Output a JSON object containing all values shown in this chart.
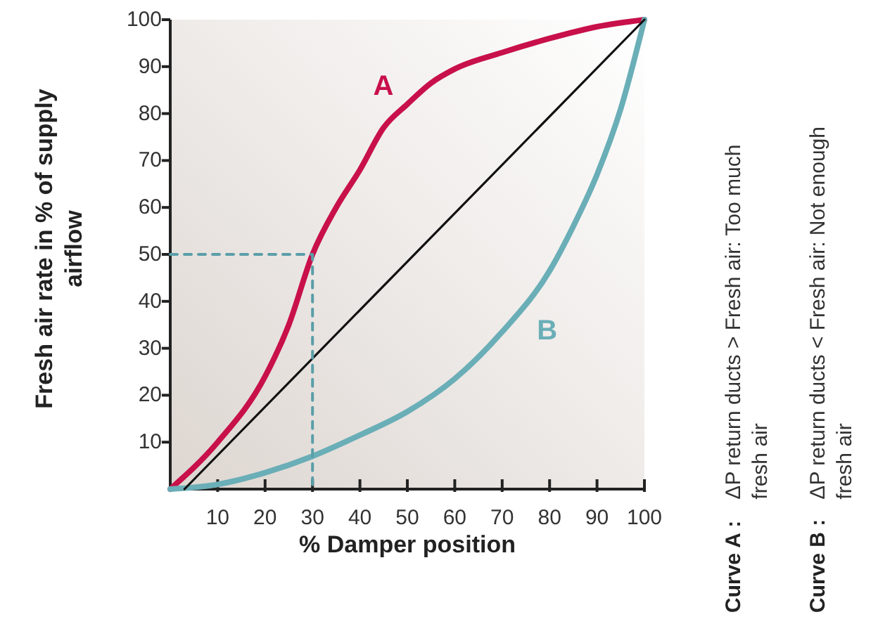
{
  "chart_data": {
    "type": "line",
    "xlabel": "% Damper position",
    "ylabel": "Fresh air rate in % of supply airflow",
    "xlim": [
      0,
      100
    ],
    "ylim": [
      0,
      100
    ],
    "xticks": [
      10,
      20,
      30,
      40,
      50,
      60,
      70,
      80,
      90,
      100
    ],
    "yticks": [
      10,
      20,
      30,
      40,
      50,
      60,
      70,
      80,
      90,
      100
    ],
    "grid": false,
    "marker": "none",
    "series": [
      {
        "name": "A",
        "color": "#c8104a",
        "x": [
          0,
          10,
          20,
          25,
          30,
          35,
          40,
          45,
          50,
          55,
          60,
          70,
          80,
          90,
          100
        ],
        "values": [
          0,
          10,
          24,
          35,
          50,
          60,
          68,
          77,
          82,
          86.5,
          89.5,
          93,
          96,
          98.5,
          100
        ]
      },
      {
        "name": "B",
        "color": "#6aaeb7",
        "x": [
          0,
          10,
          20,
          30,
          40,
          50,
          60,
          70,
          80,
          85,
          90,
          95,
          100
        ],
        "values": [
          0,
          1,
          3.5,
          7,
          11.5,
          16.5,
          23.5,
          33.5,
          46.5,
          56,
          67,
          81,
          100
        ]
      },
      {
        "color": "#111111",
        "x": [
          3,
          100
        ],
        "values": [
          0,
          100
        ]
      },
      {
        "color": "#5a9ea8",
        "x": [
          0,
          30,
          30
        ],
        "values": [
          50,
          50,
          0
        ],
        "line_style": "dashed"
      }
    ],
    "annotations": [
      "Curve A : ΔP return ducts > Fresh air: Too much fresh air",
      "Curve B : ΔP return ducts < Fresh air: Not enough fresh air"
    ]
  }
}
